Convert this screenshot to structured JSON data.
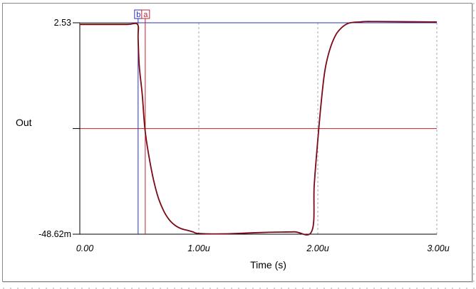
{
  "chart_data": {
    "type": "line",
    "title": "",
    "xlabel": "Time (s)",
    "ylabel": "Out",
    "x_ticks": [
      {
        "value": 0,
        "label": "0.00"
      },
      {
        "value": 1e-06,
        "label": "1.00u"
      },
      {
        "value": 2e-06,
        "label": "2.00u"
      },
      {
        "value": 3e-06,
        "label": "3.00u"
      }
    ],
    "y_ticks": [
      {
        "value": 2.53,
        "label": "2.53"
      },
      {
        "value": 1.24,
        "label": ""
      },
      {
        "value": -0.04862,
        "label": "-48.62m"
      }
    ],
    "xlim": [
      0,
      3e-06
    ],
    "ylim": [
      -0.04862,
      2.53
    ],
    "grid": "vertical dashed at x ticks",
    "colors": {
      "trace": "#7a0a16",
      "trace_input_hint": "#b8c400",
      "cursor_a": "#c0242c",
      "cursor_b": "#2730c8",
      "crosshair": "#b02828"
    },
    "cursors": [
      {
        "name": "b",
        "x": 4.9e-07
      },
      {
        "name": "a",
        "x": 5.5e-07
      }
    ],
    "horizontal_marker": {
      "y": 1.24
    },
    "series": [
      {
        "x": [
          0,
          2e-07,
          4e-07,
          4.85e-07,
          4.9e-07,
          5e-07,
          5.25e-07,
          5.5e-07,
          6e-07,
          6.5e-07,
          7e-07,
          7.5e-07,
          8e-07,
          8.5e-07,
          9e-07,
          9.5e-07,
          1e-06,
          1.2e-06,
          1.4e-06,
          1.6e-06,
          1.8e-06,
          1.95e-06,
          1.97e-06,
          2e-06,
          2.03e-06,
          2.06e-06,
          2.1e-06,
          2.15e-06,
          2.2e-06,
          2.25e-06,
          2.3e-06,
          2.35e-06,
          2.4e-06,
          2.5e-06,
          3e-06
        ],
        "y": [
          2.51,
          2.51,
          2.51,
          2.51,
          2.34,
          2.0,
          1.65,
          1.2,
          0.75,
          0.44,
          0.25,
          0.13,
          0.06,
          0.02,
          0.0,
          -0.02,
          -0.04,
          -0.045,
          -0.035,
          -0.025,
          -0.02,
          -0.01,
          0.55,
          1.1,
          1.58,
          1.95,
          2.2,
          2.38,
          2.47,
          2.52,
          2.535,
          2.54,
          2.545,
          2.545,
          2.54
        ]
      }
    ]
  }
}
